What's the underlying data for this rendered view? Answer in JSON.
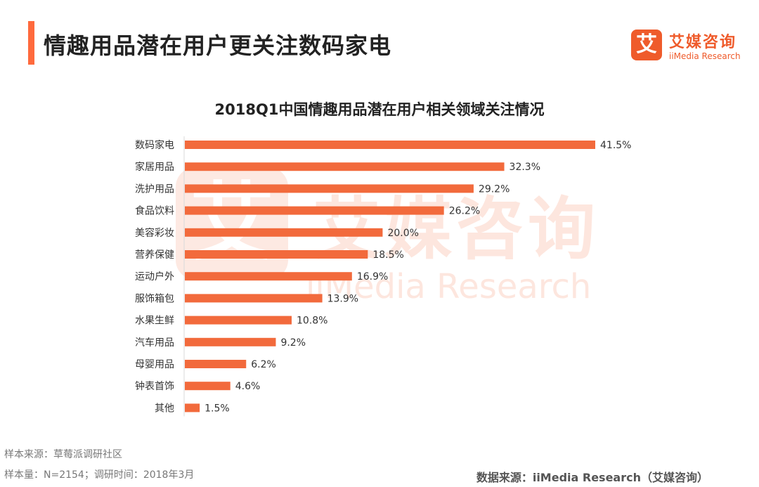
{
  "header": {
    "title": "情趣用品潜在用户更关注数码家电",
    "logo_mark": "艾",
    "logo_cn": "艾媒咨询",
    "logo_en": "iiMedia Research"
  },
  "watermark": {
    "mark": "艾",
    "cn": "艾媒咨询",
    "en": "iiMedia Research"
  },
  "colors": {
    "accent": "#ff6a3d",
    "bar": "#f26a3c",
    "brand": "#ef5b2b"
  },
  "chart_data": {
    "type": "bar",
    "orientation": "horizontal",
    "title": "2018Q1中国情趣用品潜在用户相关领域关注情况",
    "xlabel": "",
    "ylabel": "",
    "xlim": [
      0,
      41.5
    ],
    "grid": false,
    "legend": "none",
    "categories": [
      "数码家电",
      "家居用品",
      "洗护用品",
      "食品饮料",
      "美容彩妆",
      "营养保健",
      "运动户外",
      "服饰箱包",
      "水果生鲜",
      "汽车用品",
      "母婴用品",
      "钟表首饰",
      "其他"
    ],
    "values": [
      41.5,
      32.3,
      29.2,
      26.2,
      20.0,
      18.5,
      16.9,
      13.9,
      10.8,
      9.2,
      6.2,
      4.6,
      1.5
    ],
    "value_labels": [
      "41.5%",
      "32.3%",
      "29.2%",
      "26.2%",
      "20.0%",
      "18.5%",
      "16.9%",
      "13.9%",
      "10.8%",
      "9.2%",
      "6.2%",
      "4.6%",
      "1.5%"
    ]
  },
  "footer": {
    "source": "样本来源：草莓派调研社区",
    "sample": "样本量：N=2154；调研时间：2018年3月",
    "data_source": "数据来源：iiMedia Research（艾媒咨询）"
  }
}
